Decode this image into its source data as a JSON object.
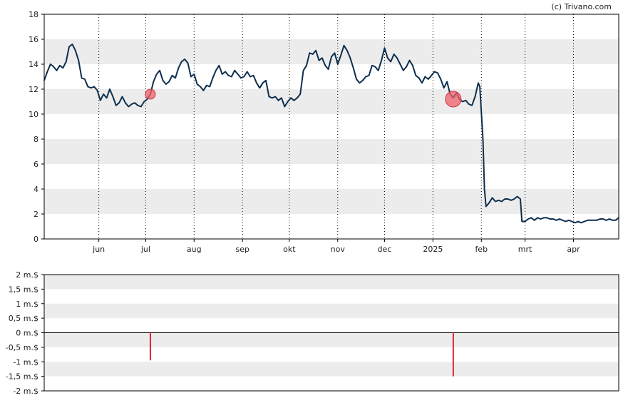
{
  "credit": "(c) Trivano.com",
  "chart_data": [
    {
      "type": "line",
      "ylim": [
        0,
        18
      ],
      "y_ticks": [
        "0",
        "2",
        "4",
        "6",
        "8",
        "10",
        "12",
        "14",
        "16",
        "18"
      ],
      "y_tick_values": [
        0,
        2,
        4,
        6,
        8,
        10,
        12,
        14,
        16,
        18
      ],
      "x_tick_labels": [
        "jun",
        "jul",
        "aug",
        "sep",
        "okt",
        "nov",
        "dec",
        "2025",
        "feb",
        "mrt",
        "apr"
      ],
      "x_tick_dates": [
        "2024-06-01",
        "2024-07-01",
        "2024-08-01",
        "2024-09-01",
        "2024-10-01",
        "2024-11-01",
        "2024-12-01",
        "2025-01-01",
        "2025-02-01",
        "2025-03-01",
        "2025-04-01"
      ],
      "x_range": [
        "2024-04-27",
        "2025-04-30"
      ],
      "grid": "alternating horizontal bands, dotted vertical month lines",
      "line_color": "#0d2f4f",
      "series": [
        {
          "values": [
            [
              "2024-04-27",
              12.7
            ],
            [
              "2024-04-29",
              13.4
            ],
            [
              "2024-05-01",
              14.0
            ],
            [
              "2024-05-03",
              13.8
            ],
            [
              "2024-05-05",
              13.5
            ],
            [
              "2024-05-07",
              13.9
            ],
            [
              "2024-05-09",
              13.7
            ],
            [
              "2024-05-11",
              14.2
            ],
            [
              "2024-05-13",
              15.4
            ],
            [
              "2024-05-15",
              15.6
            ],
            [
              "2024-05-17",
              15.1
            ],
            [
              "2024-05-19",
              14.3
            ],
            [
              "2024-05-21",
              12.9
            ],
            [
              "2024-05-23",
              12.8
            ],
            [
              "2024-05-25",
              12.2
            ],
            [
              "2024-05-27",
              12.1
            ],
            [
              "2024-05-29",
              12.2
            ],
            [
              "2024-05-31",
              11.9
            ],
            [
              "2024-06-02",
              11.1
            ],
            [
              "2024-06-04",
              11.6
            ],
            [
              "2024-06-06",
              11.3
            ],
            [
              "2024-06-08",
              12.0
            ],
            [
              "2024-06-10",
              11.4
            ],
            [
              "2024-06-12",
              10.7
            ],
            [
              "2024-06-14",
              10.9
            ],
            [
              "2024-06-16",
              11.4
            ],
            [
              "2024-06-18",
              10.9
            ],
            [
              "2024-06-20",
              10.6
            ],
            [
              "2024-06-22",
              10.8
            ],
            [
              "2024-06-24",
              10.9
            ],
            [
              "2024-06-26",
              10.7
            ],
            [
              "2024-06-28",
              10.6
            ],
            [
              "2024-06-30",
              11.0
            ],
            [
              "2024-07-02",
              11.2
            ],
            [
              "2024-07-04",
              11.6
            ],
            [
              "2024-07-06",
              12.6
            ],
            [
              "2024-07-08",
              13.2
            ],
            [
              "2024-07-10",
              13.5
            ],
            [
              "2024-07-12",
              12.7
            ],
            [
              "2024-07-14",
              12.4
            ],
            [
              "2024-07-16",
              12.6
            ],
            [
              "2024-07-18",
              13.1
            ],
            [
              "2024-07-20",
              12.9
            ],
            [
              "2024-07-22",
              13.7
            ],
            [
              "2024-07-24",
              14.2
            ],
            [
              "2024-07-26",
              14.4
            ],
            [
              "2024-07-28",
              14.1
            ],
            [
              "2024-07-30",
              13.0
            ],
            [
              "2024-08-01",
              13.2
            ],
            [
              "2024-08-03",
              12.4
            ],
            [
              "2024-08-05",
              12.2
            ],
            [
              "2024-08-07",
              11.9
            ],
            [
              "2024-08-09",
              12.3
            ],
            [
              "2024-08-11",
              12.2
            ],
            [
              "2024-08-13",
              12.9
            ],
            [
              "2024-08-15",
              13.5
            ],
            [
              "2024-08-17",
              13.9
            ],
            [
              "2024-08-19",
              13.2
            ],
            [
              "2024-08-21",
              13.4
            ],
            [
              "2024-08-23",
              13.1
            ],
            [
              "2024-08-25",
              13.0
            ],
            [
              "2024-08-27",
              13.5
            ],
            [
              "2024-08-29",
              13.2
            ],
            [
              "2024-08-31",
              12.9
            ],
            [
              "2024-09-02",
              13.0
            ],
            [
              "2024-09-04",
              13.4
            ],
            [
              "2024-09-06",
              13.0
            ],
            [
              "2024-09-08",
              13.1
            ],
            [
              "2024-09-10",
              12.5
            ],
            [
              "2024-09-12",
              12.1
            ],
            [
              "2024-09-14",
              12.5
            ],
            [
              "2024-09-16",
              12.7
            ],
            [
              "2024-09-18",
              11.4
            ],
            [
              "2024-09-20",
              11.3
            ],
            [
              "2024-09-22",
              11.4
            ],
            [
              "2024-09-24",
              11.1
            ],
            [
              "2024-09-26",
              11.3
            ],
            [
              "2024-09-28",
              10.6
            ],
            [
              "2024-09-30",
              11.0
            ],
            [
              "2024-10-02",
              11.3
            ],
            [
              "2024-10-04",
              11.1
            ],
            [
              "2024-10-06",
              11.3
            ],
            [
              "2024-10-08",
              11.6
            ],
            [
              "2024-10-10",
              13.5
            ],
            [
              "2024-10-12",
              13.9
            ],
            [
              "2024-10-14",
              14.9
            ],
            [
              "2024-10-16",
              14.8
            ],
            [
              "2024-10-18",
              15.1
            ],
            [
              "2024-10-20",
              14.3
            ],
            [
              "2024-10-22",
              14.5
            ],
            [
              "2024-10-24",
              13.9
            ],
            [
              "2024-10-26",
              13.6
            ],
            [
              "2024-10-28",
              14.6
            ],
            [
              "2024-10-30",
              14.9
            ],
            [
              "2024-11-01",
              14.0
            ],
            [
              "2024-11-03",
              14.7
            ],
            [
              "2024-11-05",
              15.5
            ],
            [
              "2024-11-07",
              15.1
            ],
            [
              "2024-11-09",
              14.5
            ],
            [
              "2024-11-11",
              13.7
            ],
            [
              "2024-11-13",
              12.8
            ],
            [
              "2024-11-15",
              12.5
            ],
            [
              "2024-11-17",
              12.7
            ],
            [
              "2024-11-19",
              13.0
            ],
            [
              "2024-11-21",
              13.1
            ],
            [
              "2024-11-23",
              13.9
            ],
            [
              "2024-11-25",
              13.8
            ],
            [
              "2024-11-27",
              13.5
            ],
            [
              "2024-11-29",
              14.3
            ],
            [
              "2024-12-01",
              15.3
            ],
            [
              "2024-12-03",
              14.5
            ],
            [
              "2024-12-05",
              14.2
            ],
            [
              "2024-12-07",
              14.8
            ],
            [
              "2024-12-09",
              14.5
            ],
            [
              "2024-12-11",
              14.0
            ],
            [
              "2024-12-13",
              13.5
            ],
            [
              "2024-12-15",
              13.8
            ],
            [
              "2024-12-17",
              14.3
            ],
            [
              "2024-12-19",
              13.9
            ],
            [
              "2024-12-21",
              13.1
            ],
            [
              "2024-12-23",
              12.9
            ],
            [
              "2024-12-25",
              12.5
            ],
            [
              "2024-12-27",
              13.0
            ],
            [
              "2024-12-29",
              12.8
            ],
            [
              "2024-12-31",
              13.1
            ],
            [
              "2025-01-02",
              13.4
            ],
            [
              "2025-01-04",
              13.3
            ],
            [
              "2025-01-06",
              12.8
            ],
            [
              "2025-01-08",
              12.1
            ],
            [
              "2025-01-10",
              12.6
            ],
            [
              "2025-01-12",
              11.6
            ],
            [
              "2025-01-14",
              11.3
            ],
            [
              "2025-01-16",
              11.7
            ],
            [
              "2025-01-18",
              11.2
            ],
            [
              "2025-01-20",
              11.0
            ],
            [
              "2025-01-22",
              11.1
            ],
            [
              "2025-01-24",
              10.8
            ],
            [
              "2025-01-26",
              10.7
            ],
            [
              "2025-01-28",
              11.4
            ],
            [
              "2025-01-30",
              12.5
            ],
            [
              "2025-01-31",
              12.2
            ],
            [
              "2025-02-02",
              8.0
            ],
            [
              "2025-02-03",
              4.0
            ],
            [
              "2025-02-04",
              2.6
            ],
            [
              "2025-02-06",
              2.9
            ],
            [
              "2025-02-08",
              3.3
            ],
            [
              "2025-02-10",
              3.0
            ],
            [
              "2025-02-12",
              3.1
            ],
            [
              "2025-02-14",
              3.0
            ],
            [
              "2025-02-16",
              3.2
            ],
            [
              "2025-02-18",
              3.2
            ],
            [
              "2025-02-20",
              3.1
            ],
            [
              "2025-02-22",
              3.2
            ],
            [
              "2025-02-24",
              3.4
            ],
            [
              "2025-02-26",
              3.2
            ],
            [
              "2025-02-27",
              1.4
            ],
            [
              "2025-03-01",
              1.4
            ],
            [
              "2025-03-03",
              1.6
            ],
            [
              "2025-03-05",
              1.7
            ],
            [
              "2025-03-07",
              1.5
            ],
            [
              "2025-03-09",
              1.7
            ],
            [
              "2025-03-11",
              1.6
            ],
            [
              "2025-03-13",
              1.7
            ],
            [
              "2025-03-15",
              1.7
            ],
            [
              "2025-03-17",
              1.6
            ],
            [
              "2025-03-19",
              1.6
            ],
            [
              "2025-03-21",
              1.5
            ],
            [
              "2025-03-23",
              1.6
            ],
            [
              "2025-03-25",
              1.5
            ],
            [
              "2025-03-27",
              1.4
            ],
            [
              "2025-03-29",
              1.5
            ],
            [
              "2025-03-31",
              1.4
            ],
            [
              "2025-04-02",
              1.3
            ],
            [
              "2025-04-04",
              1.4
            ],
            [
              "2025-04-06",
              1.3
            ],
            [
              "2025-04-08",
              1.4
            ],
            [
              "2025-04-10",
              1.5
            ],
            [
              "2025-04-12",
              1.5
            ],
            [
              "2025-04-14",
              1.5
            ],
            [
              "2025-04-16",
              1.5
            ],
            [
              "2025-04-18",
              1.6
            ],
            [
              "2025-04-20",
              1.6
            ],
            [
              "2025-04-22",
              1.5
            ],
            [
              "2025-04-24",
              1.6
            ],
            [
              "2025-04-26",
              1.5
            ],
            [
              "2025-04-28",
              1.5
            ],
            [
              "2025-04-30",
              1.7
            ]
          ]
        }
      ],
      "markers": [
        {
          "date": "2024-07-04",
          "value": 11.6,
          "size": "small",
          "color": "#f0606a"
        },
        {
          "date": "2025-01-14",
          "value": 11.2,
          "size": "large",
          "color": "#f0606a"
        }
      ]
    },
    {
      "type": "bar",
      "ylim": [
        -2,
        2
      ],
      "y_ticks": [
        "2 m.$",
        "1,5 m.$",
        "1 m.$",
        "0,5 m.$",
        "0 m.$",
        "-0,5 m.$",
        "-1 m.$",
        "-1,5 m.$",
        "-2 m.$"
      ],
      "y_tick_values": [
        2,
        1.5,
        1,
        0.5,
        0,
        -0.5,
        -1,
        -1.5,
        -2
      ],
      "x_range": [
        "2024-04-27",
        "2025-04-30"
      ],
      "bar_color": "#e0202e",
      "bars": [
        {
          "date": "2024-07-04",
          "value": -0.95
        },
        {
          "date": "2025-01-14",
          "value": -1.5
        }
      ]
    }
  ]
}
